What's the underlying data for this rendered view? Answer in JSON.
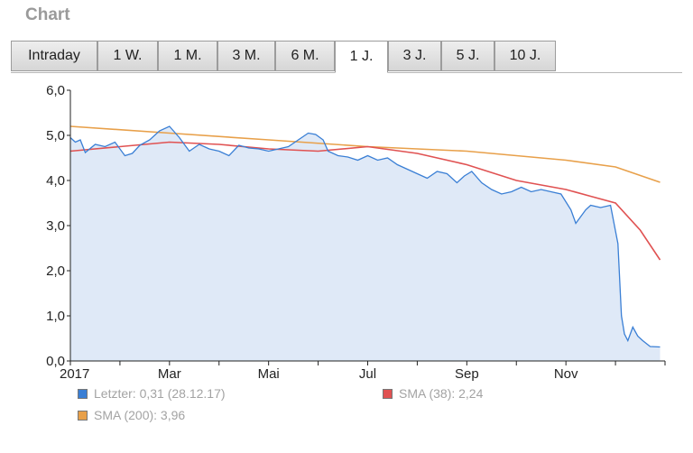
{
  "header": {
    "title": "Chart"
  },
  "tabs": [
    {
      "label": "Intraday",
      "active": false
    },
    {
      "label": "1 W.",
      "active": false
    },
    {
      "label": "1 M.",
      "active": false
    },
    {
      "label": "3 M.",
      "active": false
    },
    {
      "label": "6 M.",
      "active": false
    },
    {
      "label": "1 J.",
      "active": true
    },
    {
      "label": "3 J.",
      "active": false
    },
    {
      "label": "5 J.",
      "active": false
    },
    {
      "label": "10 J.",
      "active": false
    }
  ],
  "legend": {
    "letzter": "Letzter: 0,31 (28.12.17)",
    "sma38": "SMA (38): 2,24",
    "sma200": "SMA (200): 3,96"
  },
  "colors": {
    "price": "#3a7fd5",
    "area": "#dfe9f7",
    "sma38": "#e05252",
    "sma200": "#e8a04a"
  },
  "chart_data": {
    "type": "line",
    "ylim": [
      0,
      6
    ],
    "yticks": [
      "0,0",
      "1,0",
      "2,0",
      "3,0",
      "4,0",
      "5,0",
      "6,0"
    ],
    "x_month_range": [
      0,
      12
    ],
    "xticks": [
      {
        "label": "2017",
        "m": 0
      },
      {
        "label": "Mar",
        "m": 2
      },
      {
        "label": "Mai",
        "m": 4
      },
      {
        "label": "Jul",
        "m": 6
      },
      {
        "label": "Sep",
        "m": 8
      },
      {
        "label": "Nov",
        "m": 10
      }
    ],
    "series": [
      {
        "name": "Letzter",
        "x": [
          0,
          0.1,
          0.2,
          0.3,
          0.5,
          0.7,
          0.9,
          1.1,
          1.25,
          1.4,
          1.6,
          1.8,
          2.0,
          2.2,
          2.4,
          2.6,
          2.8,
          3.0,
          3.2,
          3.4,
          3.6,
          3.8,
          4.0,
          4.2,
          4.4,
          4.6,
          4.8,
          4.95,
          5.1,
          5.2,
          5.4,
          5.6,
          5.8,
          6.0,
          6.2,
          6.4,
          6.6,
          6.8,
          7.0,
          7.2,
          7.4,
          7.6,
          7.8,
          7.95,
          8.1,
          8.3,
          8.5,
          8.7,
          8.9,
          9.1,
          9.3,
          9.5,
          9.7,
          9.9,
          10.1,
          10.2,
          10.3,
          10.4,
          10.5,
          10.7,
          10.9,
          11.05,
          11.12,
          11.18,
          11.25,
          11.35,
          11.45,
          11.55,
          11.7,
          11.9
        ],
        "values": [
          4.95,
          4.85,
          4.9,
          4.62,
          4.8,
          4.75,
          4.85,
          4.55,
          4.6,
          4.78,
          4.9,
          5.1,
          5.2,
          4.95,
          4.65,
          4.8,
          4.7,
          4.65,
          4.55,
          4.78,
          4.72,
          4.7,
          4.65,
          4.7,
          4.75,
          4.9,
          5.05,
          5.02,
          4.9,
          4.65,
          4.55,
          4.52,
          4.45,
          4.55,
          4.45,
          4.5,
          4.35,
          4.25,
          4.15,
          4.05,
          4.2,
          4.15,
          3.95,
          4.1,
          4.2,
          3.95,
          3.8,
          3.7,
          3.75,
          3.85,
          3.75,
          3.8,
          3.75,
          3.7,
          3.35,
          3.05,
          3.2,
          3.35,
          3.45,
          3.4,
          3.45,
          2.6,
          1.0,
          0.6,
          0.45,
          0.75,
          0.55,
          0.45,
          0.32,
          0.31
        ]
      },
      {
        "name": "SMA (38)",
        "x": [
          0,
          1,
          2,
          3,
          4,
          5,
          6,
          7,
          8,
          9,
          10,
          10.5,
          11,
          11.5,
          11.9
        ],
        "values": [
          4.65,
          4.75,
          4.85,
          4.8,
          4.7,
          4.65,
          4.75,
          4.6,
          4.35,
          4.0,
          3.8,
          3.65,
          3.5,
          2.9,
          2.24
        ]
      },
      {
        "name": "SMA (200)",
        "x": [
          0,
          2,
          4,
          6,
          8,
          10,
          11,
          11.9
        ],
        "values": [
          5.2,
          5.05,
          4.9,
          4.75,
          4.65,
          4.45,
          4.3,
          3.96
        ]
      }
    ]
  }
}
